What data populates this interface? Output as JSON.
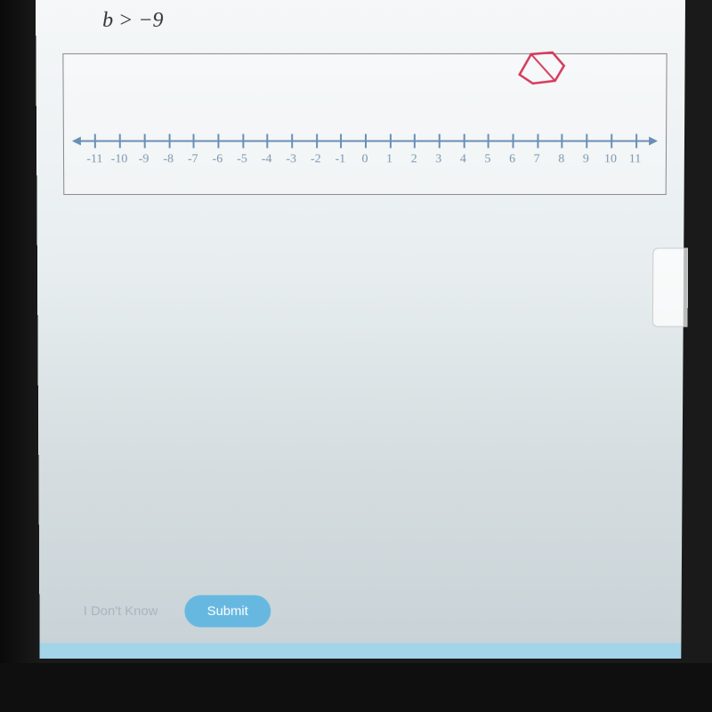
{
  "inequality": "b > −9",
  "numberline": {
    "min": -11,
    "max": 11,
    "ticks": [
      -11,
      -10,
      -9,
      -8,
      -7,
      -6,
      -5,
      -4,
      -3,
      -2,
      -1,
      0,
      1,
      2,
      3,
      4,
      5,
      6,
      7,
      8,
      9,
      10,
      11
    ],
    "labels": [
      "-11",
      "-10",
      "-9",
      "-8",
      "-7",
      "-6",
      "-5",
      "-4",
      "-3",
      "-2",
      "-1",
      "0",
      "1",
      "2",
      "3",
      "4",
      "5",
      "6",
      "7",
      "8",
      "9",
      "10",
      "11"
    ],
    "axis_color": "#6a8fb5",
    "label_color": "#7a95b0"
  },
  "shape": {
    "stroke": "#d4385a",
    "stroke_width": 2
  },
  "buttons": {
    "idk": "I Don't Know",
    "submit": "Submit"
  },
  "colors": {
    "submit_bg": "#67b8e0",
    "submit_text": "#ffffff",
    "bottom_strip": "#a3d4e8"
  }
}
